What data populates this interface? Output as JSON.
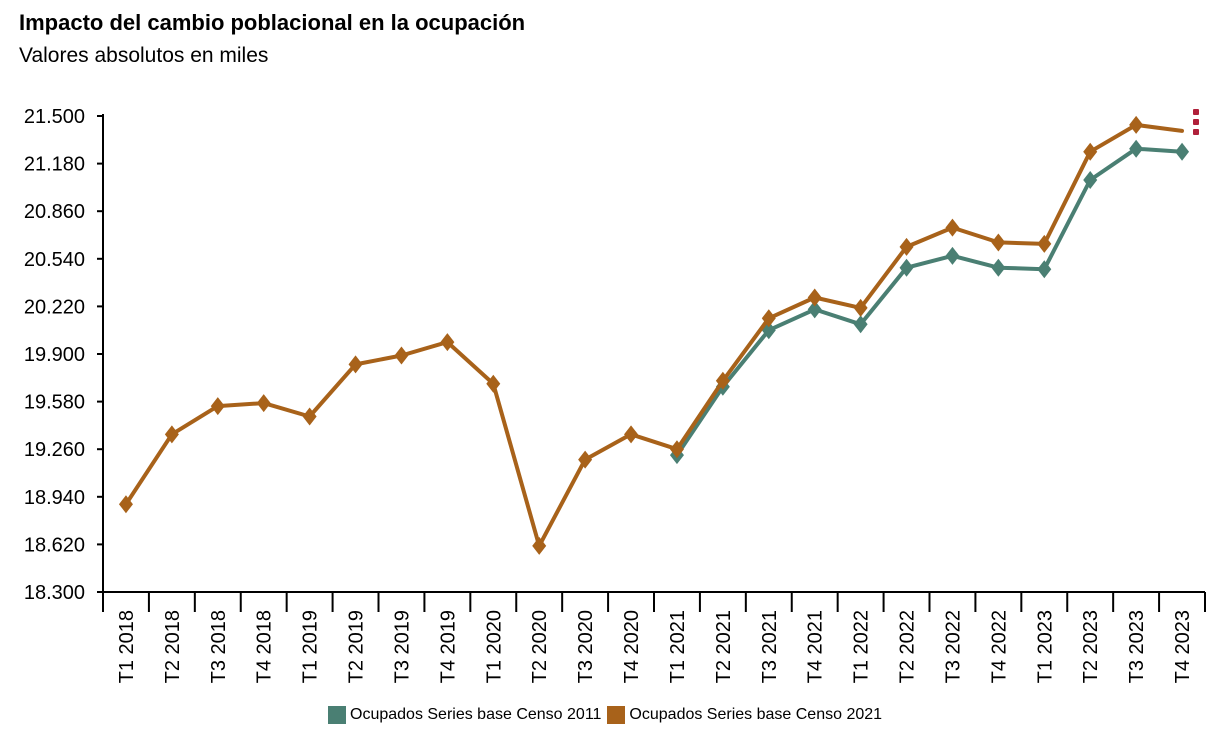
{
  "title": "Impacto del cambio poblacional en la ocupación",
  "subtitle": "Valores absolutos en miles",
  "menu_icon": "kebab-menu-icon",
  "colors": {
    "series_2011": "#4a7f73",
    "series_2021": "#a8621a",
    "menu": "#b0203a"
  },
  "chart_data": {
    "type": "line",
    "title": "Impacto del cambio poblacional en la ocupación",
    "subtitle": "Valores absolutos en miles",
    "ylim": [
      18300,
      21500
    ],
    "y_ticks": [
      "21.500",
      "21.180",
      "20.860",
      "20.540",
      "20.220",
      "19.900",
      "19.580",
      "19.260",
      "18.940",
      "18.620",
      "18.300"
    ],
    "y_tick_values": [
      21500,
      21180,
      20860,
      20540,
      20220,
      19900,
      19580,
      19260,
      18940,
      18620,
      18300
    ],
    "grid": false,
    "legend_position": "bottom",
    "categories": [
      "T1 2018",
      "T2 2018",
      "T3 2018",
      "T4 2018",
      "T1 2019",
      "T2 2019",
      "T3 2019",
      "T4 2019",
      "T1 2020",
      "T2 2020",
      "T3 2020",
      "T4 2020",
      "T1 2021",
      "T2 2021",
      "T3 2021",
      "T4 2021",
      "T1 2022",
      "T2 2022",
      "T3 2022",
      "T4 2022",
      "T1 2023",
      "T2 2023",
      "T3 2023",
      "T4 2023"
    ],
    "series": [
      {
        "name": "Ocupados Series base Censo 2011",
        "color": "#4a7f73",
        "values": [
          null,
          null,
          null,
          null,
          null,
          null,
          null,
          null,
          null,
          null,
          null,
          null,
          19220,
          19680,
          20060,
          20200,
          20100,
          20480,
          20560,
          20480,
          20470,
          21070,
          21280,
          21260
        ]
      },
      {
        "name": "Ocupados Series base Censo 2021",
        "color": "#a8621a",
        "values": [
          18890,
          19360,
          19550,
          19570,
          19480,
          19830,
          19890,
          19980,
          19700,
          18610,
          19190,
          19360,
          19260,
          19720,
          20140,
          20280,
          20210,
          20620,
          20750,
          20650,
          20640,
          21260,
          21440,
          21400
        ]
      }
    ]
  }
}
